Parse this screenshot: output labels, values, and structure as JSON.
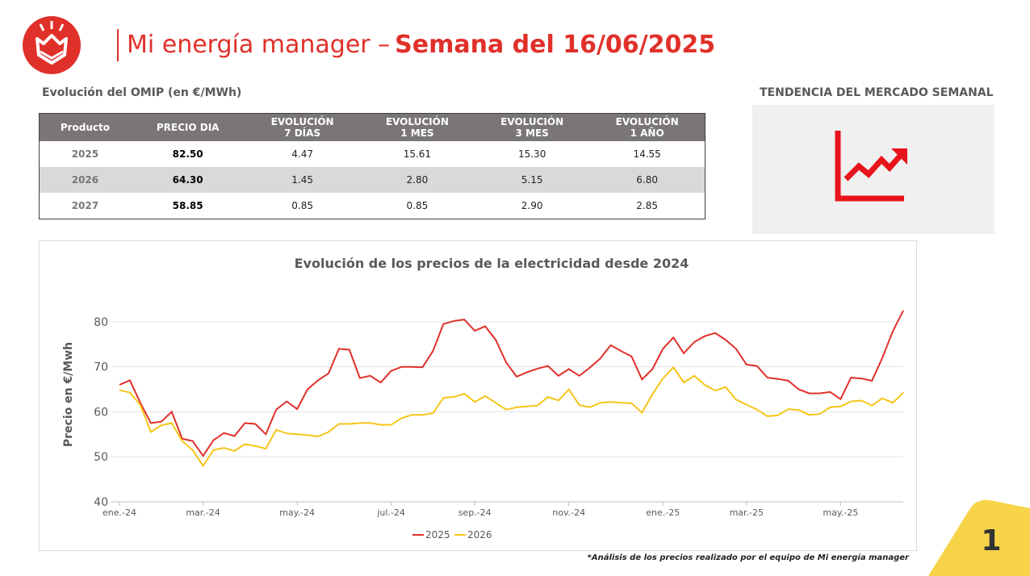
{
  "header": {
    "title_light": "Mi energía manager –",
    "title_bold": "Semana del 16/06/2025"
  },
  "table_title": "Evolución del OMIP (en €/MWh)",
  "side_title": "TENDENCIA DEL MERCADO SEMANAL",
  "table": {
    "columns": [
      "Producto",
      "PRECIO DIA",
      "EVOLUCIÓN\n7 DÍAS",
      "EVOLUCIÓN\n1 MES",
      "EVOLUCIÓN\n3 MES",
      "EVOLUCIÓN\n1 AÑO"
    ],
    "rows": [
      [
        "2025",
        "82.50",
        "4.47",
        "15.61",
        "15.30",
        "14.55"
      ],
      [
        "2026",
        "64.30",
        "1.45",
        "2.80",
        "5.15",
        "6.80"
      ],
      [
        "2027",
        "58.85",
        "0.85",
        "0.85",
        "2.90",
        "2.85"
      ]
    ]
  },
  "footnote": "*Análisis de los precios realizado por el equipo de Mi energía manager",
  "page_number": "1",
  "chart_data": {
    "type": "line",
    "title": "Evolución de los precios de la electricidad desde 2024",
    "y_label": "Precio en €/Mwh",
    "categories": [
      "ene.-24",
      null,
      null,
      null,
      null,
      null,
      null,
      null,
      "mar.-24",
      null,
      null,
      null,
      null,
      null,
      null,
      null,
      null,
      "may.-24",
      null,
      null,
      null,
      null,
      null,
      null,
      null,
      null,
      "jul.-24",
      null,
      null,
      null,
      null,
      null,
      null,
      null,
      "sep.-24",
      null,
      null,
      null,
      null,
      null,
      null,
      null,
      null,
      "nov.-24",
      null,
      null,
      null,
      null,
      null,
      null,
      null,
      null,
      "ene.-25",
      null,
      null,
      null,
      null,
      null,
      null,
      null,
      "mar.-25",
      null,
      null,
      null,
      null,
      null,
      null,
      null,
      null,
      "may.-25",
      null,
      null,
      null,
      null,
      null,
      null
    ],
    "series": [
      {
        "name": "2025",
        "color": "#e0302a",
        "values": [
          66,
          67,
          62,
          57.5,
          57.8,
          60,
          54,
          53.5,
          50.2,
          53.7,
          55.3,
          54.6,
          57.5,
          57.3,
          55,
          60.5,
          62.3,
          60.6,
          65,
          67,
          68.5,
          74,
          73.8,
          67.5,
          68,
          66.5,
          69.1,
          70,
          70,
          69.9,
          73.5,
          79.5,
          80.2,
          80.5,
          78,
          79,
          76,
          71,
          67.8,
          68.8,
          69.6,
          70.2,
          68,
          69.5,
          68,
          69.8,
          71.8,
          74.8,
          73.5,
          72.3,
          67.2,
          69.5,
          74,
          76.5,
          73,
          75.5,
          76.8,
          77.5,
          76,
          74,
          70.5,
          70.2,
          67.6,
          67.3,
          66.9,
          65,
          64.1,
          64.1,
          64.4,
          62.8,
          67.6,
          67.4,
          66.9,
          72,
          77.9,
          82.5
        ]
      },
      {
        "name": "2026",
        "color": "#f5c518",
        "values": [
          64.8,
          64.3,
          61.5,
          55.5,
          57,
          57.5,
          53.5,
          51.5,
          48,
          51.5,
          52,
          51.3,
          52.8,
          52.4,
          51.8,
          56,
          55.2,
          55,
          54.8,
          54.5,
          55.5,
          57.3,
          57.3,
          57.5,
          57.5,
          57.1,
          57.1,
          58.6,
          59.3,
          59.3,
          59.7,
          63.1,
          63.3,
          64,
          62.2,
          63.5,
          62,
          60.5,
          61,
          61.2,
          61.4,
          63.3,
          62.5,
          65,
          61.5,
          61,
          62,
          62.2,
          62,
          61.9,
          59.8,
          63.9,
          67.4,
          69.9,
          66.5,
          68,
          66,
          64.7,
          65.5,
          62.7,
          61.6,
          60.5,
          59,
          59.2,
          60.6,
          60.4,
          59.3,
          59.5,
          61,
          61.2,
          62.3,
          62.5,
          61.4,
          63,
          62,
          64.3
        ]
      }
    ],
    "ylim": [
      40,
      85
    ],
    "yticks": [
      40,
      50,
      60,
      70,
      80
    ],
    "grid": true,
    "legend": "bottom"
  }
}
